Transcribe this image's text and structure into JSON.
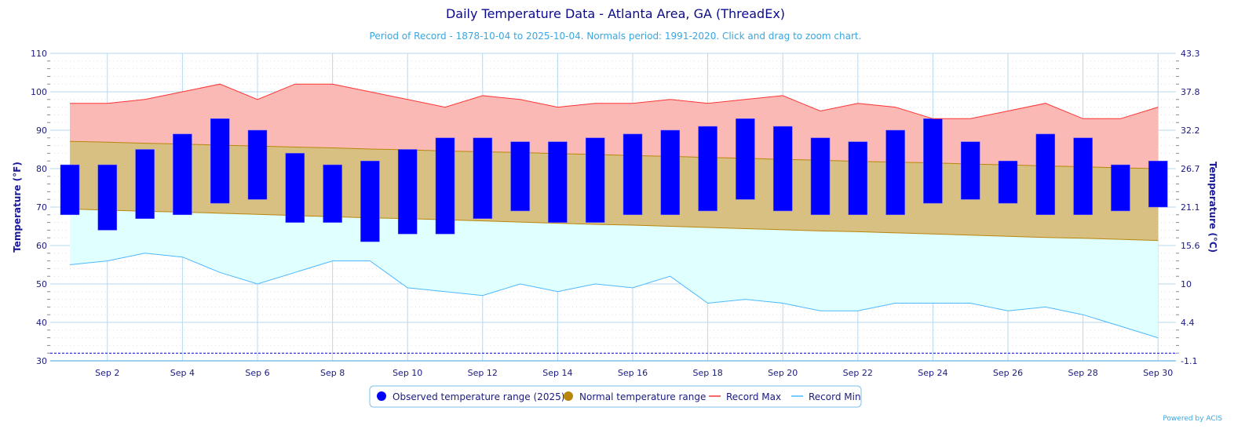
{
  "chart_data": {
    "type": "bar",
    "title": "Daily Temperature Data - Atlanta Area, GA (ThreadEx)",
    "subtitle": "Period of Record - 1878-10-04 to 2025-10-04. Normals period: 1991-2020. Click and drag to zoom chart.",
    "ylabel": "Temperature (°F)",
    "ylabel_right": "Temperature (°C)",
    "ylim": [
      30,
      110
    ],
    "yticks": [
      30,
      40,
      50,
      60,
      70,
      80,
      90,
      100,
      110
    ],
    "yticks_right": [
      "-1.1",
      "4.4",
      "10",
      "15.6",
      "21.1",
      "26.7",
      "32.2",
      "37.8",
      "43.3"
    ],
    "xticks": [
      "Sep 2",
      "Sep 4",
      "Sep 6",
      "Sep 8",
      "Sep 10",
      "Sep 12",
      "Sep 14",
      "Sep 16",
      "Sep 18",
      "Sep 20",
      "Sep 22",
      "Sep 24",
      "Sep 26",
      "Sep 28",
      "Sep 30"
    ],
    "x": [
      1,
      2,
      3,
      4,
      5,
      6,
      7,
      8,
      9,
      10,
      11,
      12,
      13,
      14,
      15,
      16,
      17,
      18,
      19,
      20,
      21,
      22,
      23,
      24,
      25,
      26,
      27,
      28,
      29,
      30
    ],
    "grid": true,
    "legend_placement": "bottom-center",
    "freezing_line": 32,
    "series": [
      {
        "name": "Observed temperature range (2025)",
        "color": "#0000ff",
        "high": [
          81,
          81,
          85,
          89,
          93,
          90,
          84,
          81,
          82,
          85,
          88,
          88,
          87,
          87,
          88,
          89,
          90,
          91,
          93,
          91,
          88,
          87,
          90,
          93,
          87,
          82,
          89,
          88,
          81,
          82
        ],
        "low": [
          68,
          64,
          67,
          68,
          71,
          72,
          66,
          66,
          61,
          63,
          63,
          67,
          69,
          66,
          66,
          68,
          68,
          69,
          72,
          69,
          68,
          68,
          68,
          71,
          72,
          71,
          68,
          68,
          69,
          70
        ]
      },
      {
        "name": "Normal temperature range",
        "color": "#b8860b",
        "high": [
          87.1,
          86.9,
          86.6,
          86.4,
          86.1,
          85.9,
          85.6,
          85.4,
          85.1,
          84.9,
          84.6,
          84.4,
          84.2,
          83.9,
          83.7,
          83.4,
          83.2,
          82.9,
          82.7,
          82.4,
          82.2,
          81.9,
          81.7,
          81.5,
          81.2,
          81.0,
          80.7,
          80.5,
          80.2,
          80.0
        ],
        "low": [
          69.5,
          69.2,
          68.9,
          68.7,
          68.4,
          68.1,
          67.8,
          67.5,
          67.2,
          67.0,
          66.7,
          66.4,
          66.1,
          65.8,
          65.5,
          65.3,
          65.0,
          64.7,
          64.4,
          64.1,
          63.8,
          63.6,
          63.3,
          63.0,
          62.7,
          62.4,
          62.1,
          61.9,
          61.6,
          61.3
        ]
      },
      {
        "name": "Record Max",
        "color": "#ff3333",
        "values": [
          97,
          97,
          98,
          100,
          102,
          98,
          102,
          102,
          100,
          98,
          96,
          99,
          98,
          96,
          97,
          97,
          98,
          97,
          98,
          99,
          95,
          97,
          96,
          93,
          93,
          95,
          97,
          93,
          93,
          96
        ]
      },
      {
        "name": "Record Min",
        "color": "#4db8ff",
        "values": [
          55,
          56,
          58,
          57,
          53,
          50,
          53,
          56,
          56,
          49,
          48,
          47,
          50,
          48,
          50,
          49,
          52,
          45,
          46,
          45,
          43,
          43,
          45,
          45,
          45,
          43,
          44,
          42,
          39,
          36
        ]
      }
    ],
    "credit": "Powered by ACIS"
  }
}
